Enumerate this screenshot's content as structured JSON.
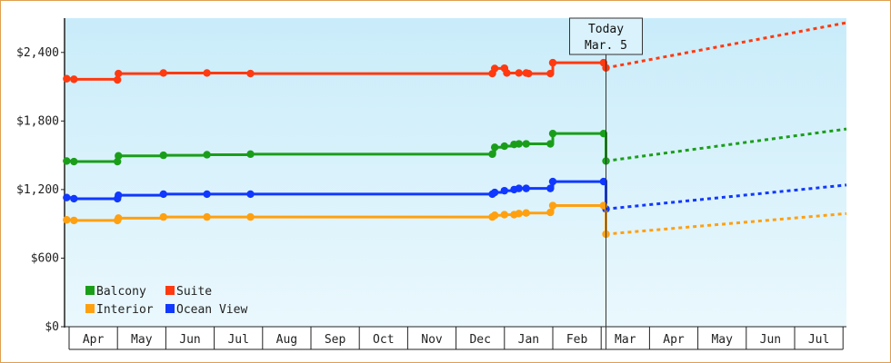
{
  "chart_data": {
    "type": "line",
    "title": "",
    "xlabel": "",
    "ylabel": "",
    "ylim": [
      0,
      2700
    ],
    "yticks": [
      0,
      600,
      1200,
      1800,
      2400
    ],
    "ytick_labels": [
      "$0",
      "$600",
      "$1,200",
      "$1,800",
      "$2,400"
    ],
    "months": [
      "Apr",
      "May",
      "Jun",
      "Jul",
      "Aug",
      "Sep",
      "Oct",
      "Nov",
      "Dec",
      "Jan",
      "Feb",
      "Mar",
      "Apr",
      "May",
      "Jun",
      "Jul"
    ],
    "month_index_range": [
      -0.45,
      15.6
    ],
    "grid": false,
    "background": "light blue gradient",
    "today": {
      "line1": "Today",
      "line2": "Mar. 5",
      "t": 10.6
    },
    "legend": {
      "placement": "bottom-left",
      "entries": [
        {
          "name": "Balcony",
          "color": "#1a9e1a"
        },
        {
          "name": "Suite",
          "color": "#ff3a10"
        },
        {
          "name": "Interior",
          "color": "#ffa010"
        },
        {
          "name": "Ocean View",
          "color": "#1038ff"
        }
      ]
    },
    "series": [
      {
        "name": "Suite",
        "color": "#ff3a10",
        "style": "step",
        "points": [
          [
            -0.55,
            2170
          ],
          [
            -0.4,
            2165
          ],
          [
            0.5,
            2160
          ],
          [
            0.52,
            2215
          ],
          [
            1.45,
            2220
          ],
          [
            2.35,
            2220
          ],
          [
            3.25,
            2215
          ],
          [
            8.25,
            2215
          ],
          [
            8.3,
            2260
          ],
          [
            8.5,
            2262
          ],
          [
            8.55,
            2220
          ],
          [
            8.8,
            2220
          ],
          [
            8.95,
            2220
          ],
          [
            9.0,
            2215
          ],
          [
            9.45,
            2215
          ],
          [
            9.5,
            2310
          ],
          [
            10.55,
            2310
          ],
          [
            10.6,
            2265
          ]
        ]
      },
      {
        "name": "Balcony",
        "color": "#1a9e1a",
        "style": "step",
        "points": [
          [
            -0.55,
            1450
          ],
          [
            -0.4,
            1445
          ],
          [
            0.5,
            1445
          ],
          [
            0.52,
            1495
          ],
          [
            1.45,
            1500
          ],
          [
            2.35,
            1505
          ],
          [
            3.25,
            1510
          ],
          [
            8.25,
            1510
          ],
          [
            8.3,
            1570
          ],
          [
            8.5,
            1580
          ],
          [
            8.7,
            1595
          ],
          [
            8.8,
            1600
          ],
          [
            8.95,
            1600
          ],
          [
            9.45,
            1600
          ],
          [
            9.5,
            1690
          ],
          [
            10.55,
            1690
          ],
          [
            10.6,
            1450
          ]
        ]
      },
      {
        "name": "Ocean View",
        "color": "#1038ff",
        "style": "step",
        "points": [
          [
            -0.55,
            1130
          ],
          [
            -0.4,
            1120
          ],
          [
            0.5,
            1120
          ],
          [
            0.52,
            1150
          ],
          [
            1.45,
            1160
          ],
          [
            2.35,
            1160
          ],
          [
            3.25,
            1160
          ],
          [
            8.25,
            1160
          ],
          [
            8.3,
            1175
          ],
          [
            8.5,
            1190
          ],
          [
            8.7,
            1200
          ],
          [
            8.8,
            1210
          ],
          [
            8.95,
            1210
          ],
          [
            9.45,
            1210
          ],
          [
            9.5,
            1270
          ],
          [
            10.55,
            1270
          ],
          [
            10.6,
            1030
          ]
        ]
      },
      {
        "name": "Interior",
        "color": "#ffa010",
        "style": "step",
        "points": [
          [
            -0.55,
            935
          ],
          [
            -0.4,
            930
          ],
          [
            0.5,
            930
          ],
          [
            0.52,
            950
          ],
          [
            1.45,
            960
          ],
          [
            2.35,
            960
          ],
          [
            3.25,
            960
          ],
          [
            8.25,
            960
          ],
          [
            8.3,
            975
          ],
          [
            8.5,
            980
          ],
          [
            8.7,
            980
          ],
          [
            8.8,
            990
          ],
          [
            8.95,
            995
          ],
          [
            9.45,
            1000
          ],
          [
            9.5,
            1060
          ],
          [
            10.55,
            1060
          ],
          [
            10.6,
            810
          ]
        ]
      }
    ],
    "forecast": [
      {
        "name": "Suite",
        "color": "#ff3a10",
        "from": [
          10.6,
          2265
        ],
        "to": [
          15.6,
          2660
        ]
      },
      {
        "name": "Balcony",
        "color": "#1a9e1a",
        "from": [
          10.6,
          1450
        ],
        "to": [
          15.6,
          1730
        ]
      },
      {
        "name": "Ocean View",
        "color": "#1038ff",
        "from": [
          10.6,
          1030
        ],
        "to": [
          15.6,
          1240
        ]
      },
      {
        "name": "Interior",
        "color": "#ffa010",
        "from": [
          10.6,
          810
        ],
        "to": [
          15.6,
          990
        ]
      }
    ]
  }
}
